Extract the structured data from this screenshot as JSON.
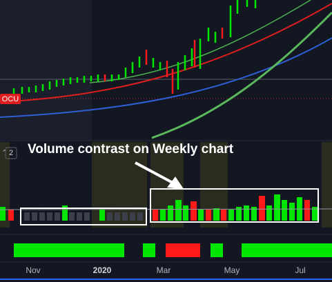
{
  "legend": {
    "symbol": "OCU",
    "pane_number": "2"
  },
  "annotation": "Volume contrast on Weekly chart",
  "x_axis": {
    "labels": [
      "Nov",
      "2020",
      "Mar",
      "May",
      "Jul"
    ]
  }
}
